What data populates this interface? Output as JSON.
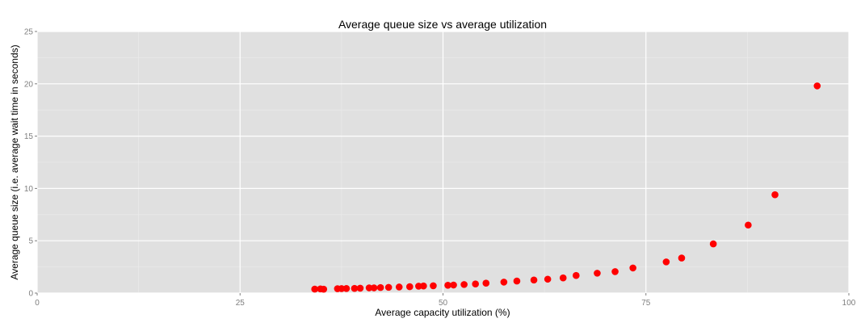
{
  "chart_data": {
    "type": "scatter",
    "title": "Average queue size vs average utilization",
    "xlabel": "Average capacity utilization (%)",
    "ylabel": "Average queue size (i.e. average wait time in seconds)",
    "xlim": [
      0,
      100
    ],
    "ylim": [
      0,
      25
    ],
    "x_ticks": [
      0,
      25,
      50,
      75,
      100
    ],
    "y_ticks": [
      0,
      5,
      10,
      15,
      20,
      25
    ],
    "grid": true,
    "colors": {
      "panel": "#e0e0e0",
      "grid_major": "#ffffff",
      "grid_minor": "#ebebeb",
      "point": "#ff0000",
      "tick_text": "#7f7f7f"
    },
    "series": [
      {
        "points": [
          [
            34.2,
            0.38
          ],
          [
            34.9,
            0.4
          ],
          [
            35.3,
            0.37
          ],
          [
            37.0,
            0.42
          ],
          [
            37.5,
            0.43
          ],
          [
            38.1,
            0.44
          ],
          [
            39.1,
            0.45
          ],
          [
            39.8,
            0.47
          ],
          [
            40.9,
            0.5
          ],
          [
            41.5,
            0.5
          ],
          [
            42.3,
            0.53
          ],
          [
            43.3,
            0.55
          ],
          [
            44.6,
            0.58
          ],
          [
            45.9,
            0.61
          ],
          [
            47.0,
            0.66
          ],
          [
            47.6,
            0.68
          ],
          [
            48.8,
            0.7
          ],
          [
            50.6,
            0.75
          ],
          [
            51.3,
            0.77
          ],
          [
            52.6,
            0.82
          ],
          [
            54.0,
            0.87
          ],
          [
            55.3,
            0.95
          ],
          [
            57.5,
            1.05
          ],
          [
            59.1,
            1.15
          ],
          [
            61.2,
            1.25
          ],
          [
            62.9,
            1.33
          ],
          [
            64.8,
            1.45
          ],
          [
            66.4,
            1.68
          ],
          [
            69.0,
            1.9
          ],
          [
            71.2,
            2.05
          ],
          [
            73.4,
            2.4
          ],
          [
            77.5,
            2.98
          ],
          [
            79.4,
            3.35
          ],
          [
            83.3,
            4.7
          ],
          [
            87.6,
            6.5
          ],
          [
            90.9,
            9.4
          ],
          [
            96.1,
            19.8
          ]
        ]
      }
    ]
  }
}
